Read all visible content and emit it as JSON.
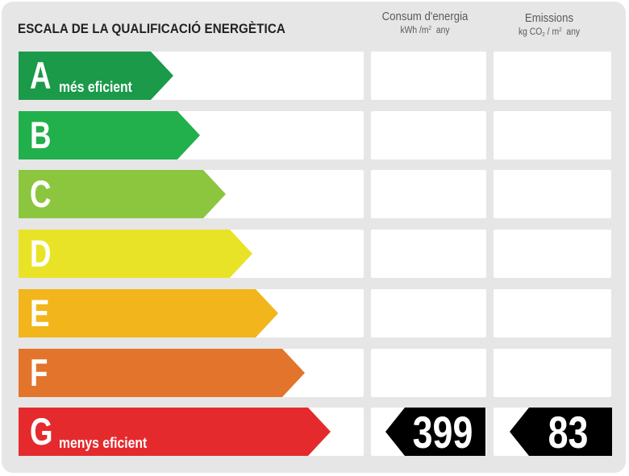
{
  "title": "ESCALA DE LA QUALIFICACIÓ ENERGÈTICA",
  "columns": {
    "energy": {
      "name": "Consum d'energia",
      "unit_pre": "kWh /m",
      "unit_sup": "2",
      "unit_post": "  any"
    },
    "emissions": {
      "name": "Emissions",
      "unit_pre": "kg CO",
      "unit_sub": "2",
      "unit_mid": " / m",
      "unit_sup": "2",
      "unit_post": "  any"
    }
  },
  "bands": [
    {
      "letter": "A",
      "label": "més eficient",
      "color": "#1b9a4a"
    },
    {
      "letter": "B",
      "label": "",
      "color": "#21b04b"
    },
    {
      "letter": "C",
      "label": "",
      "color": "#8cc63f"
    },
    {
      "letter": "D",
      "label": "",
      "color": "#e9e328"
    },
    {
      "letter": "E",
      "label": "",
      "color": "#f2b51b"
    },
    {
      "letter": "F",
      "label": "",
      "color": "#e3742b"
    },
    {
      "letter": "G",
      "label": "menys eficient",
      "color": "#e52a2d"
    }
  ],
  "rating": {
    "energy_value": "399",
    "emissions_value": "83",
    "band": "G",
    "indicator_color": "#000000"
  }
}
